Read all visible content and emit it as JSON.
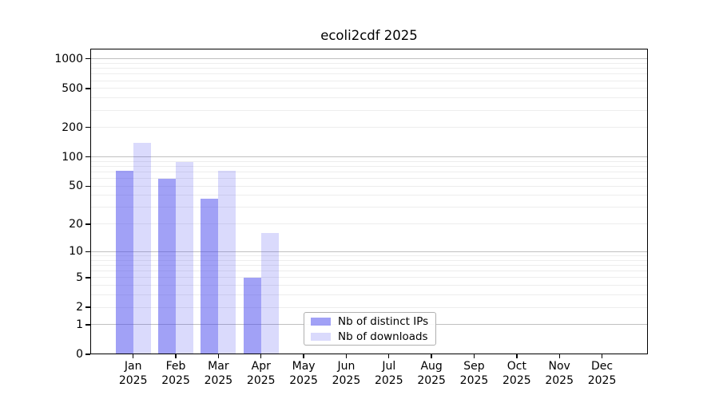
{
  "title": "ecoli2cdf 2025",
  "chart_data": {
    "type": "bar",
    "title": "ecoli2cdf 2025",
    "y_scale": "log10(1+x)",
    "ylim": [
      0,
      1250
    ],
    "y_ticks": [
      0,
      1,
      2,
      5,
      10,
      20,
      50,
      100,
      200,
      500,
      1000
    ],
    "grid": "horizontal; major lines at 1,10,100,1000; faint minor log lines",
    "legend_position": "inside-bottom-center",
    "year": "2025",
    "categories": [
      {
        "month": "Jan",
        "year": "2025"
      },
      {
        "month": "Feb",
        "year": "2025"
      },
      {
        "month": "Mar",
        "year": "2025"
      },
      {
        "month": "Apr",
        "year": "2025"
      },
      {
        "month": "May",
        "year": "2025"
      },
      {
        "month": "Jun",
        "year": "2025"
      },
      {
        "month": "Jul",
        "year": "2025"
      },
      {
        "month": "Aug",
        "year": "2025"
      },
      {
        "month": "Sep",
        "year": "2025"
      },
      {
        "month": "Oct",
        "year": "2025"
      },
      {
        "month": "Nov",
        "year": "2025"
      },
      {
        "month": "Dec",
        "year": "2025"
      }
    ],
    "series": [
      {
        "key": "distinct-ips",
        "name": "Nb of distinct IPs",
        "base_color": "#4444ee",
        "alpha": 0.5,
        "blended_color": "#a2a2f6",
        "values": [
          72,
          60,
          37,
          5,
          null,
          null,
          null,
          null,
          null,
          null,
          null,
          null
        ]
      },
      {
        "key": "downloads",
        "name": "Nb of downloads",
        "base_color": "#4444ee",
        "alpha": 0.2,
        "blended_color": "#dadafc",
        "values": [
          139,
          89,
          72,
          16,
          null,
          null,
          null,
          null,
          null,
          null,
          null,
          null
        ]
      }
    ]
  },
  "colors": {
    "major_grid": "#c0c0c0",
    "minor_grid": "#ededed",
    "spine": "#000000",
    "text": "#000000",
    "legend_border": "#b0b0b0",
    "background": "#ffffff"
  }
}
